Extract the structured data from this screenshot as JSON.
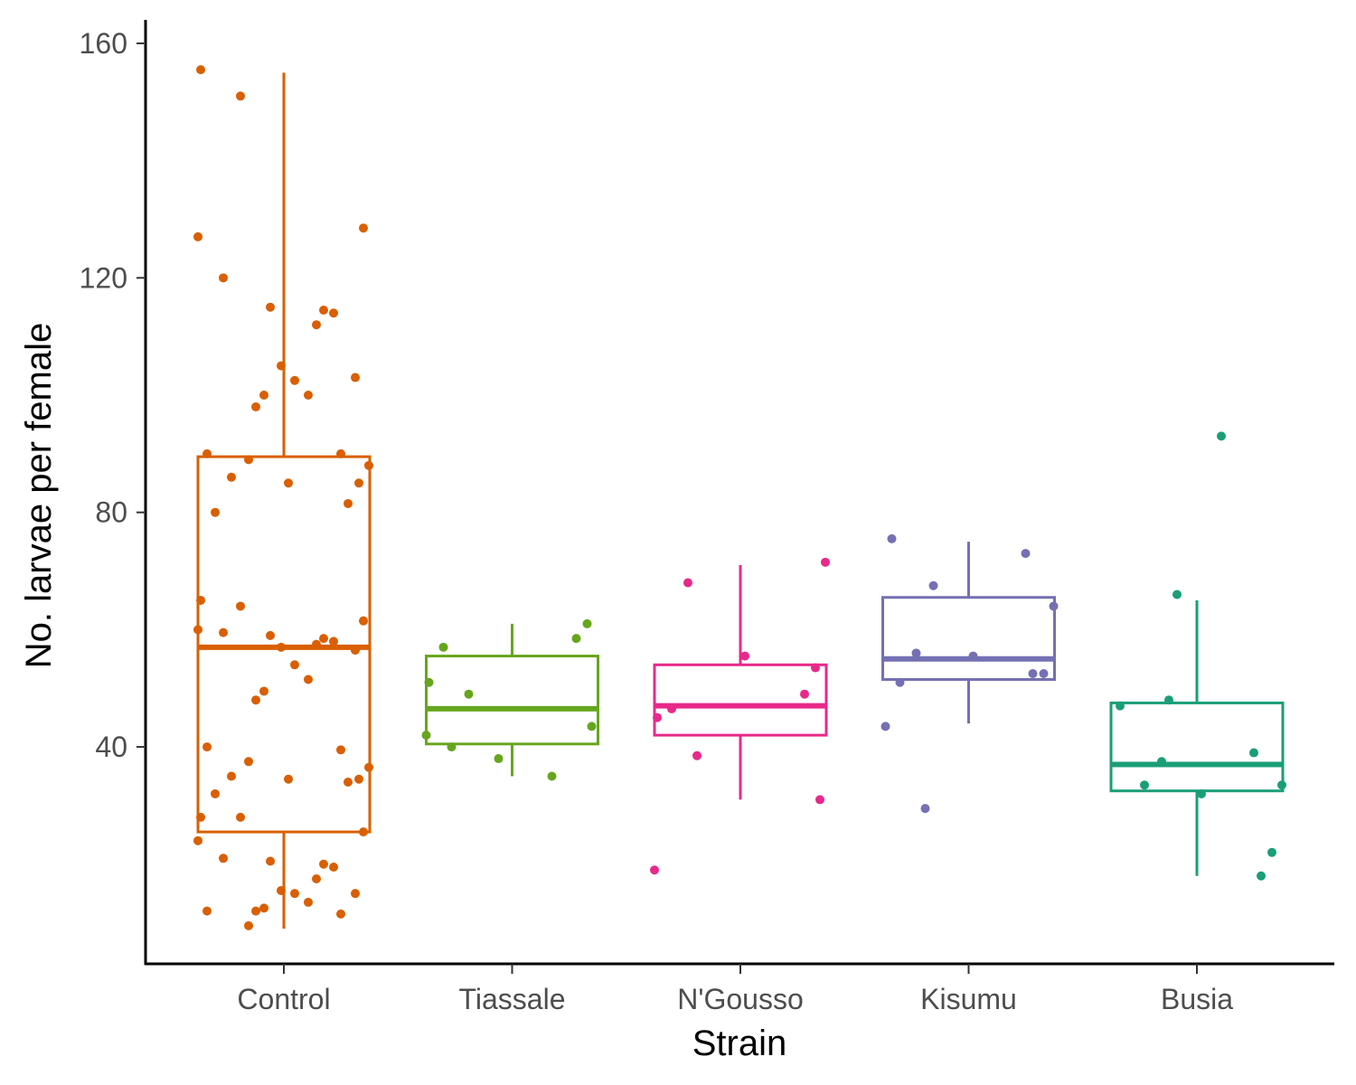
{
  "chart_data": {
    "type": "box",
    "xlabel": "Strain",
    "ylabel": "No. larvae per female",
    "ylim": [
      3,
      164
    ],
    "yticks": [
      40,
      80,
      120,
      160
    ],
    "grid": false,
    "legend": "none",
    "categories": [
      "Control",
      "Tiassale",
      "N'Gousso",
      "Kisumu",
      "Busia"
    ],
    "series": [
      {
        "category": "Control",
        "color": "#D95F02",
        "box": {
          "whisker_low": 9,
          "q1": 25.5,
          "median": 57,
          "q3": 89.5,
          "whisker_high": 155
        },
        "points": [
          155.5,
          151,
          128.5,
          127,
          120,
          115,
          114.5,
          114,
          112,
          105,
          103,
          102.5,
          100,
          100,
          98,
          90,
          90,
          89,
          88,
          86,
          85,
          85,
          81.5,
          80,
          65,
          64,
          61.5,
          60,
          59.5,
          59,
          58.5,
          58,
          57.5,
          57,
          56.5,
          54,
          51.5,
          49.5,
          48,
          40,
          39.5,
          37.5,
          36.5,
          35,
          34.5,
          34.5,
          34,
          32,
          28,
          28,
          25.5,
          24,
          21,
          20.5,
          20,
          19.5,
          17.5,
          15.5,
          15,
          15,
          13.5,
          12.5,
          12,
          12,
          11.5,
          9.5
        ]
      },
      {
        "category": "Tiassale",
        "color": "#66A61E",
        "box": {
          "whisker_low": 35,
          "q1": 40.5,
          "median": 46.5,
          "q3": 55.5,
          "whisker_high": 61
        },
        "points": [
          61,
          58.5,
          57,
          51,
          49,
          43.5,
          42,
          40,
          38,
          35
        ]
      },
      {
        "category": "N'Gousso",
        "color": "#E7298A",
        "box": {
          "whisker_low": 31,
          "q1": 42,
          "median": 47,
          "q3": 54,
          "whisker_high": 71
        },
        "points": [
          71.5,
          68,
          55.5,
          53.5,
          49,
          46.5,
          45,
          38.5,
          31,
          19
        ]
      },
      {
        "category": "Kisumu",
        "color": "#7570B3",
        "box": {
          "whisker_low": 44,
          "q1": 51.5,
          "median": 55,
          "q3": 65.5,
          "whisker_high": 75
        },
        "points": [
          75.5,
          73,
          67.5,
          64,
          56,
          55.5,
          52.5,
          52.5,
          51,
          43.5,
          29.5
        ]
      },
      {
        "category": "Busia",
        "color": "#1B9E77",
        "box": {
          "whisker_low": 18,
          "q1": 32.5,
          "median": 37,
          "q3": 47.5,
          "whisker_high": 65
        },
        "points": [
          93,
          66,
          48,
          47,
          39,
          37.5,
          33.5,
          33.5,
          32,
          22,
          18
        ]
      }
    ]
  }
}
